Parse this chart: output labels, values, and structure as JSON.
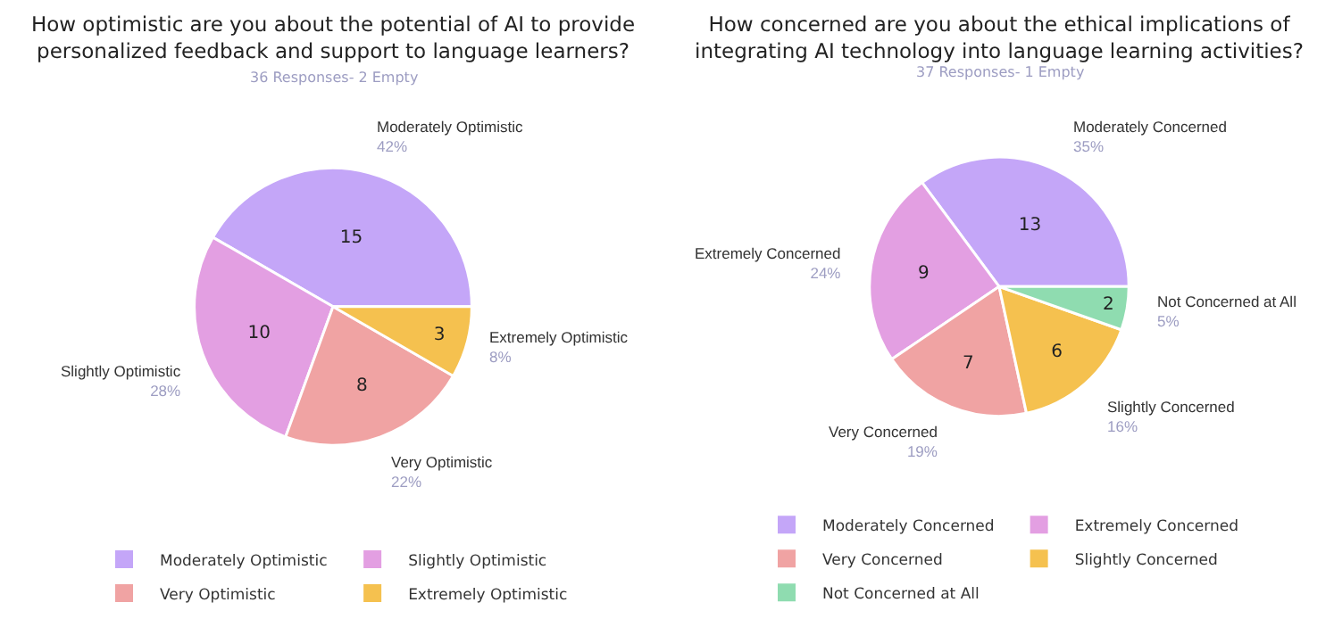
{
  "chart_data": [
    {
      "type": "pie",
      "title": "How optimistic are you about the potential of AI to provide\npersonalized feedback and support to language learners?",
      "subtitle": "36 Responses- 2 Empty",
      "categories": [
        "Moderately Optimistic",
        "Slightly Optimistic",
        "Very Optimistic",
        "Extremely Optimistic"
      ],
      "values": [
        15,
        10,
        8,
        3
      ],
      "colors": [
        "#c4a6f8",
        "#e39fe2",
        "#f0a3a3",
        "#f5c14f"
      ],
      "annotations": [
        "42%",
        "28%",
        "22%",
        "8%"
      ],
      "data_labels": true,
      "legend": "bottom"
    },
    {
      "type": "pie",
      "title": "How concerned are you about the ethical implications of\nintegrating AI technology into language learning activities?",
      "subtitle": "37 Responses- 1 Empty",
      "categories": [
        "Moderately Concerned",
        "Extremely Concerned",
        "Very Concerned",
        "Slightly Concerned",
        "Not Concerned at All"
      ],
      "values": [
        13,
        9,
        7,
        6,
        2
      ],
      "colors": [
        "#c4a6f8",
        "#e39fe2",
        "#f0a3a3",
        "#f5c14f",
        "#8fdcb0"
      ],
      "annotations": [
        "35%",
        "24%",
        "19%",
        "16%",
        "5%"
      ],
      "data_labels": true,
      "legend": "bottom"
    }
  ]
}
